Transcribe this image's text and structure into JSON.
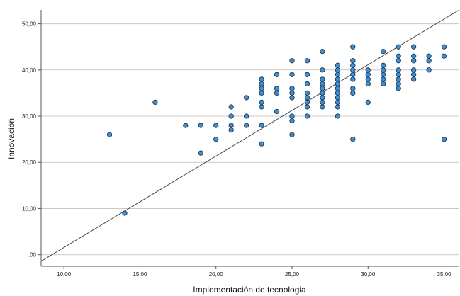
{
  "chart_data": {
    "type": "scatter",
    "title": "",
    "xlabel": "Implementación de tecnologia",
    "ylabel": "Innovación",
    "xlim": [
      8.5,
      36.0
    ],
    "ylim": [
      -2.5,
      53.0
    ],
    "x_ticks": [
      10,
      15,
      20,
      25,
      30,
      35
    ],
    "x_tick_labels": [
      "10,00",
      "15,00",
      "20,00",
      "25,00",
      "30,00",
      "35,00"
    ],
    "y_ticks": [
      0,
      10,
      20,
      30,
      40,
      50
    ],
    "y_tick_labels": [
      ".00",
      "10,00",
      "20,00",
      "30,00",
      "40,00",
      "50,00"
    ],
    "grid": "horizontal",
    "reference_line": {
      "type": "identity",
      "from": [
        8.5,
        -1.4
      ],
      "to": [
        36.0,
        53.0
      ]
    },
    "colors": {
      "point_fill": "#3d8fd1",
      "point_stroke": "#1f3550",
      "grid": "#c8c8c8",
      "axis": "#555555",
      "line": "#444444"
    },
    "points": [
      [
        13,
        26
      ],
      [
        14,
        9
      ],
      [
        16,
        33
      ],
      [
        18,
        28
      ],
      [
        19,
        28
      ],
      [
        19,
        22
      ],
      [
        20,
        28
      ],
      [
        20,
        25
      ],
      [
        21,
        32
      ],
      [
        21,
        30
      ],
      [
        21,
        28
      ],
      [
        21,
        27
      ],
      [
        22,
        34
      ],
      [
        22,
        30
      ],
      [
        22,
        28
      ],
      [
        23,
        38
      ],
      [
        23,
        37
      ],
      [
        23,
        36
      ],
      [
        23,
        35
      ],
      [
        23,
        33
      ],
      [
        23,
        32
      ],
      [
        23,
        28
      ],
      [
        23,
        24
      ],
      [
        24,
        39
      ],
      [
        24,
        36
      ],
      [
        24,
        35
      ],
      [
        24,
        31
      ],
      [
        25,
        42
      ],
      [
        25,
        39
      ],
      [
        25,
        36
      ],
      [
        25,
        35
      ],
      [
        25,
        34
      ],
      [
        25,
        30
      ],
      [
        25,
        29
      ],
      [
        25,
        26
      ],
      [
        26,
        42
      ],
      [
        26,
        39
      ],
      [
        26,
        37
      ],
      [
        26,
        35
      ],
      [
        26,
        34
      ],
      [
        26,
        33
      ],
      [
        26,
        32
      ],
      [
        26,
        30
      ],
      [
        27,
        44
      ],
      [
        27,
        40
      ],
      [
        27,
        38
      ],
      [
        27,
        37
      ],
      [
        27,
        36
      ],
      [
        27,
        35
      ],
      [
        27,
        34
      ],
      [
        27,
        33
      ],
      [
        27,
        32
      ],
      [
        28,
        41
      ],
      [
        28,
        40
      ],
      [
        28,
        39
      ],
      [
        28,
        38
      ],
      [
        28,
        37
      ],
      [
        28,
        36
      ],
      [
        28,
        35
      ],
      [
        28,
        34
      ],
      [
        28,
        33
      ],
      [
        28,
        32
      ],
      [
        28,
        30
      ],
      [
        29,
        45
      ],
      [
        29,
        42
      ],
      [
        29,
        41
      ],
      [
        29,
        40
      ],
      [
        29,
        39
      ],
      [
        29,
        38
      ],
      [
        29,
        36
      ],
      [
        29,
        35
      ],
      [
        29,
        25
      ],
      [
        30,
        40
      ],
      [
        30,
        39
      ],
      [
        30,
        38
      ],
      [
        30,
        37
      ],
      [
        30,
        33
      ],
      [
        31,
        44
      ],
      [
        31,
        41
      ],
      [
        31,
        40
      ],
      [
        31,
        39
      ],
      [
        31,
        38
      ],
      [
        31,
        37
      ],
      [
        32,
        45
      ],
      [
        32,
        43
      ],
      [
        32,
        42
      ],
      [
        32,
        40
      ],
      [
        32,
        39
      ],
      [
        32,
        38
      ],
      [
        32,
        37
      ],
      [
        32,
        36
      ],
      [
        33,
        45
      ],
      [
        33,
        43
      ],
      [
        33,
        42
      ],
      [
        33,
        40
      ],
      [
        33,
        39
      ],
      [
        33,
        38
      ],
      [
        34,
        43
      ],
      [
        34,
        42
      ],
      [
        34,
        40
      ],
      [
        35,
        45
      ],
      [
        35,
        43
      ],
      [
        35,
        25
      ]
    ]
  }
}
